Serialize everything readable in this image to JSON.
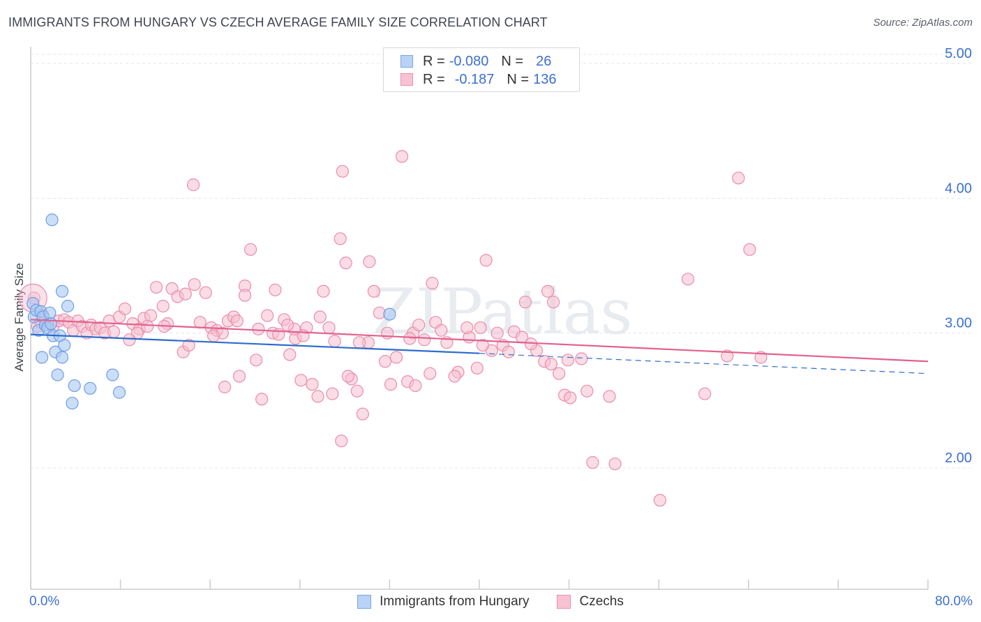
{
  "title": "IMMIGRANTS FROM HUNGARY VS CZECH AVERAGE FAMILY SIZE CORRELATION CHART",
  "source": "Source: ZipAtlas.com",
  "watermark": "ZIPatlas",
  "legend_top": [
    {
      "r_label": "R =",
      "r_value": "-0.080",
      "n_label": "N =",
      "n_value": "26",
      "fill": "#b8d3f7",
      "stroke": "#7aa6e6"
    },
    {
      "r_label": "R =",
      "r_value": "-0.187",
      "n_label": "N =",
      "n_value": "136",
      "fill": "#f7c3d3",
      "stroke": "#ec8fae"
    }
  ],
  "x_min_label": "0.0%",
  "x_max_label": "80.0%",
  "colors": {
    "blue_fill": "#a9c8f3",
    "blue_stroke": "#6e9ee3",
    "blue_line": "#2d6ccc",
    "pink_fill": "#f5bfd0",
    "pink_stroke": "#ea8cab",
    "pink_line": "#e2618d",
    "axis_text": "#3b6fd1",
    "grid": "#e2e4e8"
  },
  "chart_data": {
    "type": "scatter",
    "title": "IMMIGRANTS FROM HUNGARY VS CZECH AVERAGE FAMILY SIZE CORRELATION CHART",
    "xlabel": "",
    "ylabel": "Average Family Size",
    "xlim": [
      0,
      80
    ],
    "ylim": [
      1.1,
      5.15
    ],
    "y_ticks": [
      2.0,
      3.0,
      4.0,
      5.0
    ],
    "y_tick_labels": [
      "2.00",
      "3.00",
      "4.00",
      "5.00"
    ],
    "x_tick_values": [
      0,
      8,
      16,
      24,
      32,
      40,
      48,
      56,
      64,
      72,
      80
    ],
    "legend_placement": "bottom",
    "series": [
      {
        "name": "Immigrants from Hungary",
        "r": -0.08,
        "n": 26,
        "points": [
          [
            0.2,
            3.22
          ],
          [
            0.3,
            3.12
          ],
          [
            0.5,
            3.17
          ],
          [
            0.7,
            3.02
          ],
          [
            0.9,
            3.16
          ],
          [
            1.1,
            3.12
          ],
          [
            1.3,
            3.06
          ],
          [
            1.5,
            3.04
          ],
          [
            1.7,
            3.15
          ],
          [
            1.8,
            3.07
          ],
          [
            2.0,
            2.98
          ],
          [
            2.2,
            2.86
          ],
          [
            2.4,
            2.69
          ],
          [
            2.6,
            2.98
          ],
          [
            2.8,
            2.82
          ],
          [
            3.0,
            2.91
          ],
          [
            1.0,
            2.82
          ],
          [
            3.3,
            3.2
          ],
          [
            2.8,
            3.31
          ],
          [
            1.9,
            3.84
          ],
          [
            3.7,
            2.48
          ],
          [
            3.9,
            2.61
          ],
          [
            5.3,
            2.59
          ],
          [
            7.3,
            2.69
          ],
          [
            7.9,
            2.56
          ],
          [
            32.0,
            3.14
          ]
        ],
        "trend": {
          "x": [
            0,
            40
          ],
          "y": [
            2.99,
            2.85
          ],
          "dashed_x": [
            40,
            80
          ],
          "dashed_y": [
            2.85,
            2.7
          ]
        }
      },
      {
        "name": "Czechs",
        "r": -0.187,
        "n": 136,
        "points": [
          [
            0.3,
            3.26
          ],
          [
            0.6,
            3.05
          ],
          [
            0.9,
            3.08
          ],
          [
            1.1,
            3.13
          ],
          [
            2.0,
            3.05
          ],
          [
            2.5,
            3.09
          ],
          [
            3.0,
            3.1
          ],
          [
            3.4,
            3.08
          ],
          [
            3.8,
            3.02
          ],
          [
            4.2,
            3.09
          ],
          [
            4.6,
            3.05
          ],
          [
            5.0,
            3.0
          ],
          [
            5.4,
            3.06
          ],
          [
            5.8,
            3.03
          ],
          [
            6.2,
            3.04
          ],
          [
            6.6,
            3.0
          ],
          [
            7.0,
            3.09
          ],
          [
            7.4,
            3.01
          ],
          [
            7.9,
            3.12
          ],
          [
            8.4,
            3.18
          ],
          [
            9.1,
            3.07
          ],
          [
            9.7,
            3.03
          ],
          [
            10.1,
            3.11
          ],
          [
            10.7,
            3.13
          ],
          [
            11.2,
            3.34
          ],
          [
            11.8,
            3.2
          ],
          [
            12.2,
            3.07
          ],
          [
            12.6,
            3.33
          ],
          [
            13.1,
            3.27
          ],
          [
            13.6,
            2.86
          ],
          [
            14.1,
            2.91
          ],
          [
            14.6,
            3.36
          ],
          [
            15.1,
            3.08
          ],
          [
            15.6,
            3.3
          ],
          [
            16.1,
            3.04
          ],
          [
            16.6,
            3.02
          ],
          [
            17.1,
            3.0
          ],
          [
            17.6,
            3.09
          ],
          [
            18.1,
            3.12
          ],
          [
            18.6,
            2.68
          ],
          [
            19.1,
            3.35
          ],
          [
            19.6,
            3.62
          ],
          [
            20.1,
            2.8
          ],
          [
            20.6,
            2.51
          ],
          [
            21.1,
            3.13
          ],
          [
            21.6,
            3.0
          ],
          [
            22.1,
            2.99
          ],
          [
            22.6,
            3.1
          ],
          [
            23.1,
            2.84
          ],
          [
            23.6,
            2.96
          ],
          [
            24.1,
            2.65
          ],
          [
            24.6,
            3.04
          ],
          [
            25.1,
            2.62
          ],
          [
            25.6,
            2.53
          ],
          [
            26.1,
            3.31
          ],
          [
            26.6,
            3.04
          ],
          [
            27.1,
            2.94
          ],
          [
            27.6,
            3.7
          ],
          [
            27.8,
            4.2
          ],
          [
            28.1,
            3.52
          ],
          [
            28.6,
            2.66
          ],
          [
            29.1,
            2.57
          ],
          [
            29.6,
            2.4
          ],
          [
            30.1,
            2.93
          ],
          [
            30.6,
            3.31
          ],
          [
            31.1,
            3.15
          ],
          [
            31.6,
            2.79
          ],
          [
            32.1,
            2.62
          ],
          [
            32.6,
            2.82
          ],
          [
            33.1,
            4.31
          ],
          [
            33.6,
            2.64
          ],
          [
            34.1,
            3.0
          ],
          [
            34.6,
            3.06
          ],
          [
            35.1,
            2.95
          ],
          [
            35.6,
            2.7
          ],
          [
            36.1,
            3.08
          ],
          [
            37.1,
            2.93
          ],
          [
            38.1,
            2.71
          ],
          [
            39.1,
            2.97
          ],
          [
            40.1,
            3.04
          ],
          [
            40.6,
            3.54
          ],
          [
            41.1,
            2.87
          ],
          [
            42.1,
            2.91
          ],
          [
            43.1,
            3.01
          ],
          [
            44.1,
            3.23
          ],
          [
            45.1,
            2.87
          ],
          [
            46.1,
            3.31
          ],
          [
            46.6,
            3.23
          ],
          [
            47.1,
            2.7
          ],
          [
            47.6,
            2.54
          ],
          [
            48.1,
            2.52
          ],
          [
            49.1,
            2.81
          ],
          [
            50.1,
            2.04
          ],
          [
            52.1,
            2.03
          ],
          [
            56.1,
            1.76
          ],
          [
            60.1,
            2.55
          ],
          [
            62.1,
            2.83
          ],
          [
            63.1,
            4.15
          ],
          [
            64.1,
            3.62
          ],
          [
            65.1,
            2.82
          ],
          [
            14.5,
            4.1
          ],
          [
            21.8,
            3.32
          ],
          [
            30.2,
            3.53
          ],
          [
            35.8,
            3.37
          ],
          [
            19.1,
            3.28
          ],
          [
            23.5,
            3.03
          ],
          [
            45.8,
            2.79
          ],
          [
            46.4,
            2.77
          ],
          [
            24.3,
            2.98
          ],
          [
            26.9,
            2.55
          ],
          [
            27.7,
            2.2
          ],
          [
            22.9,
            3.06
          ],
          [
            17.3,
            2.6
          ],
          [
            13.8,
            3.29
          ],
          [
            9.5,
            3.0
          ],
          [
            11.9,
            3.05
          ],
          [
            8.8,
            2.95
          ],
          [
            16.3,
            2.98
          ],
          [
            18.4,
            3.09
          ],
          [
            20.3,
            3.03
          ],
          [
            29.3,
            2.93
          ],
          [
            31.8,
            3.0
          ],
          [
            36.6,
            3.02
          ],
          [
            38.9,
            3.04
          ],
          [
            42.6,
            2.86
          ],
          [
            44.6,
            2.92
          ],
          [
            33.8,
            2.96
          ],
          [
            28.3,
            2.68
          ],
          [
            39.8,
            2.74
          ],
          [
            41.6,
            3.0
          ],
          [
            47.9,
            2.8
          ],
          [
            49.6,
            2.57
          ],
          [
            51.6,
            2.53
          ],
          [
            58.6,
            3.4
          ],
          [
            43.8,
            2.97
          ],
          [
            34.3,
            2.61
          ],
          [
            37.8,
            2.68
          ],
          [
            40.3,
            2.91
          ],
          [
            25.8,
            3.12
          ],
          [
            10.4,
            3.05
          ]
        ],
        "trend": {
          "x": [
            0,
            80
          ],
          "y": [
            3.1,
            2.79
          ]
        }
      }
    ]
  }
}
